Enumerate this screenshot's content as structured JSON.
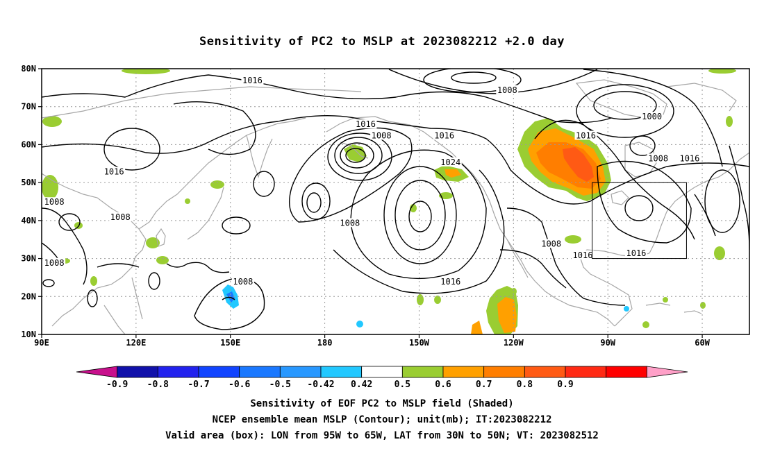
{
  "title": "Sensitivity of PC2 to MSLP at 2023082212 +2.0 day",
  "lat_ticks": [
    {
      "label": "80N",
      "lat": 80
    },
    {
      "label": "70N",
      "lat": 70
    },
    {
      "label": "60N",
      "lat": 60
    },
    {
      "label": "50N",
      "lat": 50
    },
    {
      "label": "40N",
      "lat": 40
    },
    {
      "label": "30N",
      "lat": 30
    },
    {
      "label": "20N",
      "lat": 20
    },
    {
      "label": "10N",
      "lat": 10
    }
  ],
  "lon_ticks": [
    {
      "label": "90E",
      "lon": 90
    },
    {
      "label": "120E",
      "lon": 120
    },
    {
      "label": "150E",
      "lon": 150
    },
    {
      "label": "180",
      "lon": 180
    },
    {
      "label": "150W",
      "lon": 210
    },
    {
      "label": "120W",
      "lon": 240
    },
    {
      "label": "90W",
      "lon": 270
    },
    {
      "label": "60W",
      "lon": 300
    }
  ],
  "map_extent": {
    "lon_min": 90,
    "lon_max": 315,
    "lat_min": 10,
    "lat_max": 80
  },
  "valid_box": {
    "lon_min": 265,
    "lon_max": 295,
    "lat_min": 30,
    "lat_max": 50
  },
  "contour_labels": [
    {
      "text": "1016",
      "lon": 157,
      "lat": 76.5
    },
    {
      "text": "1008",
      "lon": 238,
      "lat": 74
    },
    {
      "text": "1000",
      "lon": 284,
      "lat": 67
    },
    {
      "text": "1016",
      "lon": 113,
      "lat": 52.5
    },
    {
      "text": "1016",
      "lon": 193,
      "lat": 65
    },
    {
      "text": "1008",
      "lon": 198,
      "lat": 62
    },
    {
      "text": "1016",
      "lon": 218,
      "lat": 62
    },
    {
      "text": "1016",
      "lon": 263,
      "lat": 62
    },
    {
      "text": "1024",
      "lon": 220,
      "lat": 55
    },
    {
      "text": "1008",
      "lon": 286,
      "lat": 56
    },
    {
      "text": "1016",
      "lon": 296,
      "lat": 56
    },
    {
      "text": "1008",
      "lon": 94,
      "lat": 44.5
    },
    {
      "text": "1008",
      "lon": 115,
      "lat": 40.5
    },
    {
      "text": "1008",
      "lon": 188,
      "lat": 39
    },
    {
      "text": "1008",
      "lon": 94,
      "lat": 28.5
    },
    {
      "text": "1008",
      "lon": 252,
      "lat": 33.5
    },
    {
      "text": "1016",
      "lon": 262,
      "lat": 30.5
    },
    {
      "text": "1016",
      "lon": 279,
      "lat": 31
    },
    {
      "text": "1016",
      "lon": 220,
      "lat": 23.5
    },
    {
      "text": "1008",
      "lon": 154,
      "lat": 23.5
    }
  ],
  "colorbar": {
    "colors": [
      "#c8108c",
      "#1111aa",
      "#2222ee",
      "#1144ff",
      "#1a78ff",
      "#2898ff",
      "#22c8ff",
      "#ffffff",
      "#9acd32",
      "#ffa000",
      "#ff7e00",
      "#ff5a14",
      "#ff2a14",
      "#ff0000",
      "#ffa0c8"
    ],
    "labels": [
      "-0.9",
      "-0.8",
      "-0.7",
      "-0.6",
      "-0.5",
      "-0.42",
      "0.42",
      "0.5",
      "0.6",
      "0.7",
      "0.8",
      "0.9"
    ]
  },
  "captions": {
    "line1": "Sensitivity of EOF PC2 to MSLP field (Shaded)",
    "line2": "NCEP ensemble mean MSLP (Contour); unit(mb); IT:2023082212",
    "line3": "Valid area (box): LON from 95W to 65W, LAT from 30N to 50N; VT: 2023082512"
  },
  "colors": {
    "coast": "#a6a6a6",
    "grid": "#9a9a9a",
    "contour": "#000000",
    "green": "#9acd32",
    "orange": "#ffa000",
    "dark_orange": "#ff7e00",
    "red_orange": "#ff5a14",
    "cyan": "#22c8ff",
    "blue": "#1a78ff"
  }
}
